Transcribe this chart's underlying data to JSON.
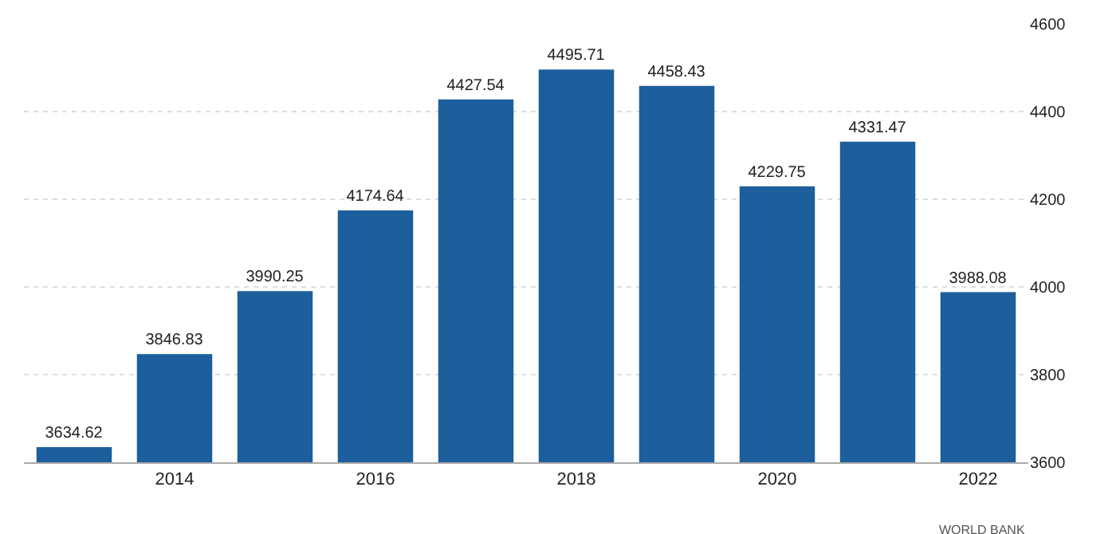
{
  "chart_data": {
    "type": "bar",
    "x": [
      2013,
      2014,
      2015,
      2016,
      2017,
      2018,
      2019,
      2020,
      2021,
      2022
    ],
    "values": [
      3634.62,
      3846.83,
      3990.25,
      4174.64,
      4427.54,
      4495.71,
      4458.43,
      4229.75,
      4331.47,
      3988.08
    ],
    "color": "#1d5e9c",
    "xlim": [
      2012.5,
      2022.5
    ],
    "xticks": [
      2014,
      2016,
      2018,
      2020,
      2022
    ],
    "ylim": [
      3600,
      4600
    ],
    "yticks": [
      3600,
      3800,
      4000,
      4200,
      4400,
      4600
    ],
    "grid": "y",
    "data_labels": true,
    "annotations": [
      "WORLD BANK"
    ]
  }
}
